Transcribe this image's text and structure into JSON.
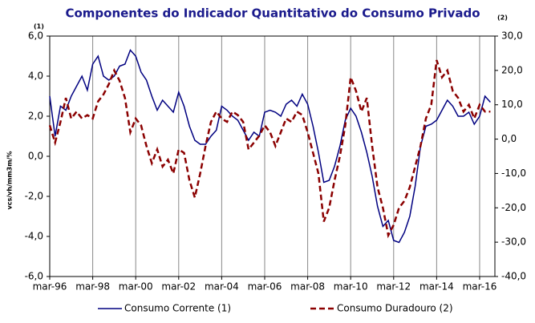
{
  "chart_data": {
    "type": "line",
    "title": "Componentes do Indicador Quantitativo do Consumo Privado",
    "annotations": [
      "(1)",
      "(2)"
    ],
    "y_label": "vcs/vh/mm3m/%",
    "x": [
      1996.17,
      1996.42,
      1996.67,
      1996.92,
      1997.17,
      1997.42,
      1997.67,
      1997.92,
      1998.17,
      1998.42,
      1998.67,
      1998.92,
      1999.17,
      1999.42,
      1999.67,
      1999.92,
      2000.17,
      2000.42,
      2000.67,
      2000.92,
      2001.17,
      2001.42,
      2001.67,
      2001.92,
      2002.17,
      2002.42,
      2002.67,
      2002.92,
      2003.17,
      2003.42,
      2003.67,
      2003.92,
      2004.17,
      2004.42,
      2004.67,
      2004.92,
      2005.17,
      2005.42,
      2005.67,
      2005.92,
      2006.17,
      2006.42,
      2006.67,
      2006.92,
      2007.17,
      2007.42,
      2007.67,
      2007.92,
      2008.17,
      2008.42,
      2008.67,
      2008.92,
      2009.17,
      2009.42,
      2009.67,
      2009.92,
      2010.17,
      2010.42,
      2010.67,
      2010.92,
      2011.17,
      2011.42,
      2011.67,
      2011.92,
      2012.17,
      2012.42,
      2012.67,
      2012.92,
      2013.17,
      2013.42,
      2013.67,
      2013.92,
      2014.17,
      2014.42,
      2014.67,
      2014.92,
      2015.17,
      2015.42,
      2015.67,
      2015.92,
      2016.17,
      2016.42,
      2016.67
    ],
    "series": [
      {
        "name": "Consumo Corrente (1)",
        "color": "#000080",
        "dash": false,
        "axis": "y",
        "values": [
          3.0,
          1.0,
          2.5,
          2.3,
          3.0,
          3.5,
          4.0,
          3.3,
          4.6,
          5.0,
          4.0,
          3.8,
          4.0,
          4.5,
          4.6,
          5.3,
          5.0,
          4.2,
          3.8,
          3.0,
          2.3,
          2.8,
          2.5,
          2.2,
          3.2,
          2.5,
          1.5,
          0.8,
          0.6,
          0.6,
          1.0,
          1.3,
          2.5,
          2.3,
          2.0,
          1.8,
          1.3,
          0.8,
          1.2,
          1.0,
          2.2,
          2.3,
          2.2,
          2.0,
          2.6,
          2.8,
          2.5,
          3.1,
          2.6,
          1.5,
          0.2,
          -1.3,
          -1.2,
          -0.5,
          0.5,
          1.8,
          2.4,
          2.0,
          1.2,
          0.2,
          -1.0,
          -2.5,
          -3.5,
          -3.2,
          -4.2,
          -4.3,
          -3.8,
          -3.0,
          -1.5,
          0.5,
          1.5,
          1.6,
          1.8,
          2.3,
          2.8,
          2.5,
          2.0,
          2.0,
          2.2,
          1.6,
          2.0,
          3.0,
          2.7
        ]
      },
      {
        "name": "Consumo Duradouro (2)",
        "color": "#8b0000",
        "dash": true,
        "axis": "y2",
        "values": [
          4,
          -1,
          5,
          12,
          6,
          8,
          6,
          7,
          6,
          11,
          13,
          16,
          20,
          17,
          12,
          2,
          6,
          4,
          -2,
          -7,
          -3,
          -8,
          -6,
          -10,
          -3,
          -4,
          -12,
          -17,
          -10,
          -2,
          5,
          8,
          6,
          5,
          8,
          7,
          5,
          -3,
          -1,
          1,
          4,
          2,
          -2,
          2,
          6,
          5,
          8,
          7,
          2,
          -4,
          -10,
          -24,
          -20,
          -12,
          -5,
          4,
          18,
          14,
          8,
          12,
          -2,
          -14,
          -20,
          -28,
          -25,
          -20,
          -18,
          -14,
          -8,
          -2,
          6,
          10,
          23,
          18,
          20,
          14,
          12,
          8,
          10,
          6,
          10,
          8,
          8
        ]
      }
    ],
    "xlim": [
      1996.17,
      2016.88
    ],
    "xticks": [
      {
        "value": 1996.17,
        "label": "mar-96"
      },
      {
        "value": 1998.17,
        "label": "mar-98"
      },
      {
        "value": 2000.17,
        "label": "mar-00"
      },
      {
        "value": 2002.17,
        "label": "mar-02"
      },
      {
        "value": 2004.17,
        "label": "mar-04"
      },
      {
        "value": 2006.17,
        "label": "mar-06"
      },
      {
        "value": 2008.17,
        "label": "mar-08"
      },
      {
        "value": 2010.17,
        "label": "mar-10"
      },
      {
        "value": 2012.17,
        "label": "mar-12"
      },
      {
        "value": 2014.17,
        "label": "mar-14"
      },
      {
        "value": 2016.17,
        "label": "mar-16"
      }
    ],
    "ylim": [
      -6,
      6
    ],
    "yticks": [
      {
        "value": -6,
        "label": "-6,0"
      },
      {
        "value": -4,
        "label": "-4,0"
      },
      {
        "value": -2,
        "label": "-2,0"
      },
      {
        "value": 0,
        "label": "0,0"
      },
      {
        "value": 2,
        "label": "2,0"
      },
      {
        "value": 4,
        "label": "4,0"
      },
      {
        "value": 6,
        "label": "6,0"
      }
    ],
    "y2lim": [
      -40,
      30
    ],
    "y2ticks": [
      {
        "value": -40,
        "label": "-40,0"
      },
      {
        "value": -30,
        "label": "-30,0"
      },
      {
        "value": -20,
        "label": "-20,0"
      },
      {
        "value": -10,
        "label": "-10,0"
      },
      {
        "value": 0,
        "label": "0,0"
      },
      {
        "value": 10,
        "label": "10,0"
      },
      {
        "value": 20,
        "label": "20,0"
      },
      {
        "value": 30,
        "label": "30,0"
      }
    ],
    "grid": "x"
  }
}
